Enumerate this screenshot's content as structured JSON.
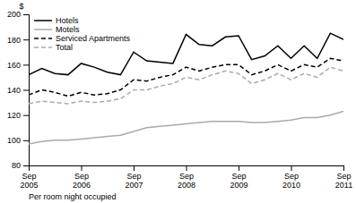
{
  "chart_data": {
    "type": "line",
    "y_label": "$",
    "annotations": [
      "Per room night occupied"
    ],
    "categories": [
      "Sep\n2005",
      null,
      null,
      null,
      "Sep\n2006",
      null,
      null,
      null,
      "Sep\n2007",
      null,
      null,
      null,
      "Sep\n2008",
      null,
      null,
      null,
      "Sep\n2009",
      null,
      null,
      null,
      "Sep\n2010",
      null,
      null,
      null,
      "Sep\n2011"
    ],
    "series": [
      {
        "name": "Hotels",
        "color": "#000000",
        "line_style": "solid",
        "values": [
          152,
          157,
          153,
          152,
          161,
          158,
          154,
          152,
          170,
          163,
          162,
          161,
          184,
          176,
          175,
          182,
          183,
          164,
          167,
          175,
          165,
          175,
          165,
          185,
          180
        ]
      },
      {
        "name": "Motels",
        "color": "#aaaaaa",
        "line_style": "solid",
        "values": [
          97,
          99,
          100,
          100,
          101,
          102,
          103,
          104,
          107,
          110,
          111,
          112,
          113,
          114,
          115,
          115,
          115,
          114,
          114,
          115,
          116,
          118,
          118,
          120,
          123
        ]
      },
      {
        "name": "Serviced Apartments",
        "color": "#000000",
        "line_style": "dashed",
        "values": [
          136,
          140,
          138,
          135,
          138,
          136,
          137,
          140,
          148,
          147,
          150,
          152,
          158,
          155,
          158,
          160,
          160,
          152,
          155,
          160,
          155,
          160,
          158,
          165,
          163
        ]
      },
      {
        "name": "Total",
        "color": "#aaaaaa",
        "line_style": "dashed",
        "values": [
          129,
          131,
          130,
          129,
          131,
          130,
          131,
          133,
          140,
          140,
          143,
          145,
          150,
          148,
          152,
          155,
          153,
          145,
          148,
          153,
          148,
          153,
          150,
          158,
          155
        ]
      }
    ],
    "ylim": [
      80,
      200
    ],
    "yticks": [
      80,
      100,
      120,
      140,
      160,
      180,
      200
    ],
    "grid": false,
    "legend": "upper left"
  }
}
